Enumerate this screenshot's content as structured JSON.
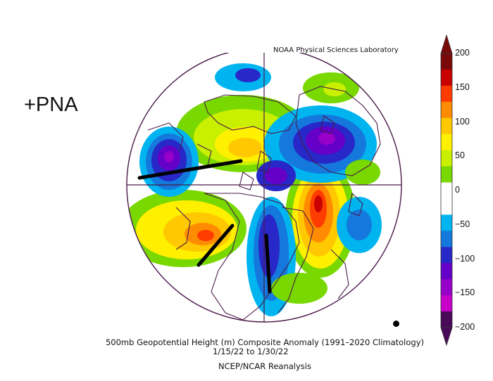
{
  "pattern_label": "+PNA",
  "credit": "NOAA Physical Sciences Laboratory",
  "caption": {
    "line1": "500mb Geopotential Height (m) Composite Anomaly (1991–2020 Climatology)",
    "line2": "1/15/22   to 1/30/22",
    "line3": "NCEP/NCAR Reanalysis"
  },
  "colorbar": {
    "ticks": [
      "200",
      "150",
      "100",
      "50",
      "0",
      "−50",
      "−100",
      "−150",
      "−200"
    ],
    "colors": [
      "#7a0a0a",
      "#c80000",
      "#ff3c00",
      "#ff8c00",
      "#ffc800",
      "#fff000",
      "#c8f000",
      "#78d800",
      "#ffffff",
      "#ffffff",
      "#00b4f0",
      "#1478dc",
      "#2828c8",
      "#6400c8",
      "#9600c8",
      "#c800c8",
      "#4a0a5a"
    ]
  }
}
